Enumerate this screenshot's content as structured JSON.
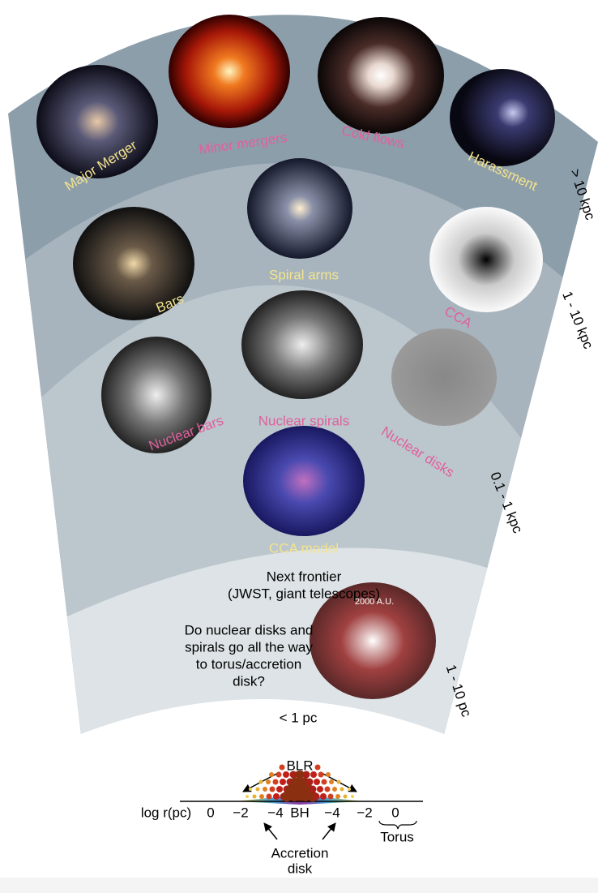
{
  "scales": [
    "> 10 kpc",
    "1 - 10 kpc",
    "0.1 - 1 kpc",
    "1 - 10 pc"
  ],
  "panels": [
    {
      "label": "Major Merger"
    },
    {
      "label": "Minor mergers"
    },
    {
      "label": "Cold flows"
    },
    {
      "label": "Harassment"
    },
    {
      "label": "Bars"
    },
    {
      "label": "Spiral arms"
    },
    {
      "label": "CCA"
    },
    {
      "label": "Nuclear bars"
    },
    {
      "label": "Nuclear spirals"
    },
    {
      "label": "Nuclear disks"
    },
    {
      "label": "CCA model"
    }
  ],
  "frontier": {
    "title": [
      "Next frontier",
      "(JWST, giant telescopes)"
    ],
    "question": [
      "Do nuclear disks and",
      "spirals go all the way",
      "to torus/accretion",
      "disk?"
    ],
    "scale_bar": "2000 A.U."
  },
  "inner_label": "< 1 pc",
  "agn": {
    "blr": "BLR",
    "axis_label": "log r(pc)",
    "ticks": [
      "0",
      "−2",
      "−4",
      "BH",
      "−4",
      "−2",
      "0"
    ],
    "torus": "Torus",
    "accretion_disk": [
      "Accretion",
      "disk"
    ]
  }
}
